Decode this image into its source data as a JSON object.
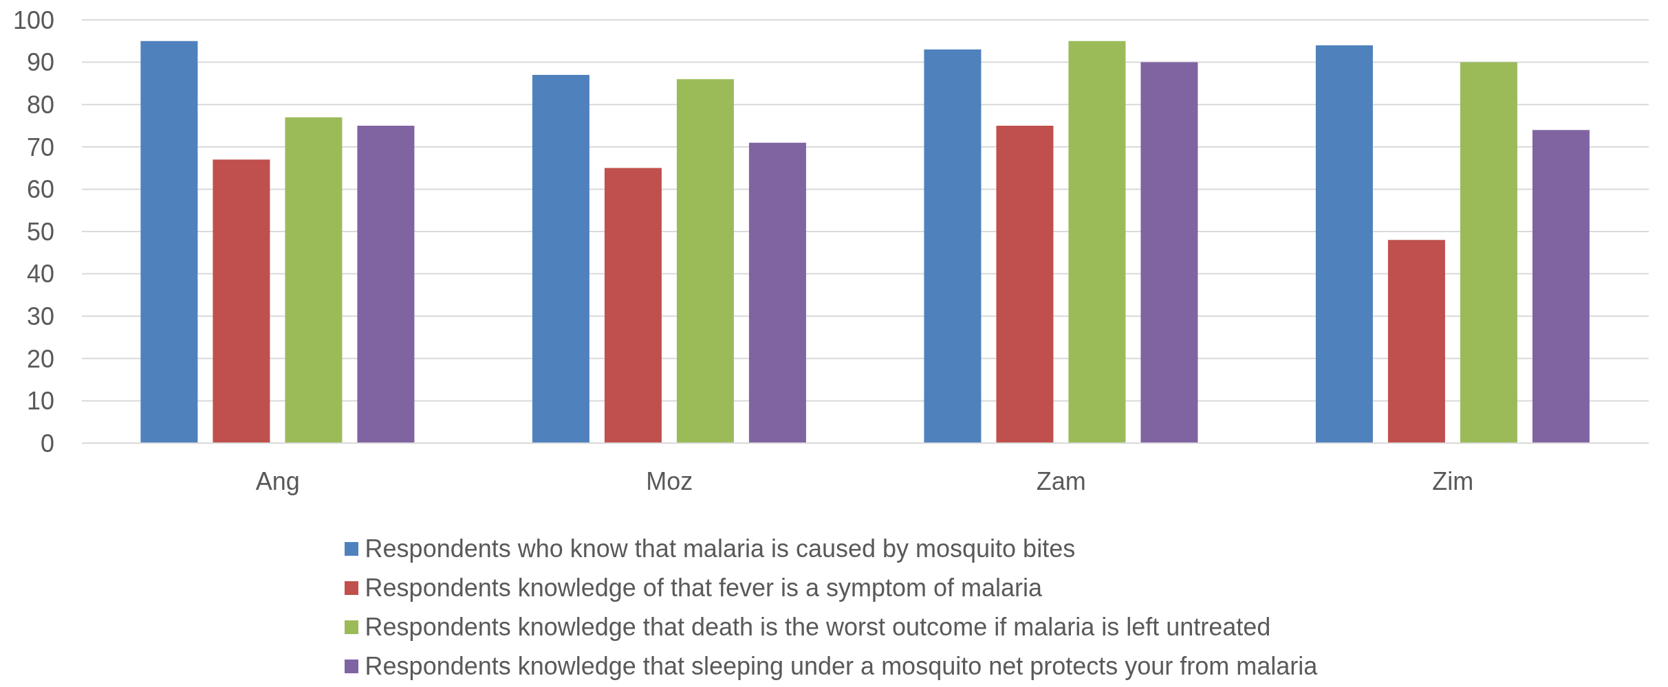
{
  "chart_data": {
    "type": "bar",
    "categories": [
      "Ang",
      "Moz",
      "Zam",
      "Zim"
    ],
    "series": [
      {
        "name": "Respondents who know that malaria is caused by mosquito bites",
        "color": "#4f81bd",
        "values": [
          95,
          87,
          93,
          94
        ]
      },
      {
        "name": "Respondents knowledge of that fever is a symptom of malaria",
        "color": "#c0504d",
        "values": [
          67,
          65,
          75,
          48
        ]
      },
      {
        "name": "Respondents knowledge that death is the worst outcome if malaria is left untreated",
        "color": "#9bbb59",
        "values": [
          77,
          86,
          95,
          90
        ]
      },
      {
        "name": "Respondents knowledge that sleeping under a mosquito net protects your from malaria",
        "color": "#8064a2",
        "values": [
          75,
          71,
          90,
          74
        ]
      }
    ],
    "ylim": [
      0,
      100
    ],
    "yticks": [
      0,
      10,
      20,
      30,
      40,
      50,
      60,
      70,
      80,
      90,
      100
    ],
    "grid": "y",
    "legend": "bottom"
  }
}
